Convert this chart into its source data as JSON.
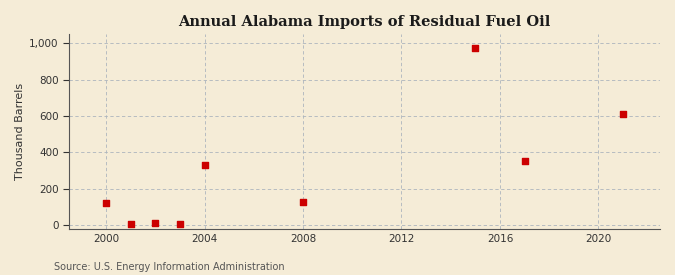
{
  "title": "Annual Alabama Imports of Residual Fuel Oil",
  "ylabel": "Thousand Barrels",
  "source_text": "Source: U.S. Energy Information Administration",
  "figure_bg_color": "#f5ecd7",
  "plot_bg_color": "#f5ecd7",
  "marker_color": "#cc0000",
  "grid_color": "#adb5bd",
  "spine_color": "#555555",
  "tick_color": "#333333",
  "title_color": "#1a1a1a",
  "xlim": [
    1998.5,
    2022.5
  ],
  "ylim": [
    -20,
    1050
  ],
  "yticks": [
    0,
    200,
    400,
    600,
    800,
    1000
  ],
  "xticks": [
    2000,
    2004,
    2008,
    2012,
    2016,
    2020
  ],
  "data": {
    "years": [
      2000,
      2001,
      2002,
      2003,
      2004,
      2008,
      2015,
      2017,
      2021
    ],
    "values": [
      120,
      5,
      10,
      5,
      330,
      125,
      975,
      355,
      610
    ]
  }
}
